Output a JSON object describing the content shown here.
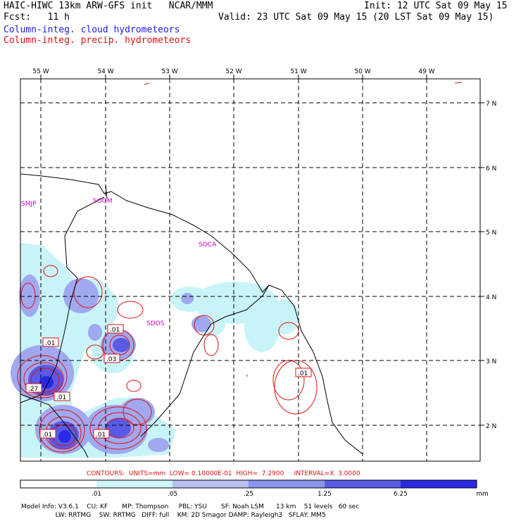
{
  "header": {
    "line1_left": "HAIC-HIWC 13km ARW-GFS init   NCAR/MMM",
    "line1_right": "Init: 12 UTC Sat 09 May 15",
    "line2_left": "Fcst:   11 h",
    "line2_right": "Valid: 23 UTC Sat 09 May 15 (20 LST Sat 09 May 15)",
    "line3": "Column-integ. cloud hydrometeors",
    "line4": "Column-integ. precip. hydrometeors"
  },
  "map": {
    "lon_labels": [
      "55 W",
      "54 W",
      "53 W",
      "52 W",
      "51 W",
      "50 W",
      "49 W"
    ],
    "lat_labels": [
      "7 N",
      "6 N",
      "5 N",
      "4 N",
      "3 N",
      "2 N"
    ],
    "stations": [
      "SMJP",
      "SOOM",
      "SOCA",
      "SDOS"
    ],
    "contour_labels": [
      ".01",
      ".01",
      ".03",
      ".27",
      ".01",
      ".01",
      ".01",
      ".01"
    ],
    "colors": {
      "cloud_shade_light": "#c8f4f8",
      "cloud_shade_mid": "#a0a8f0",
      "cloud_shade_dark": "#5050e0",
      "precip_contour": "#e01010",
      "station": "#cc00cc"
    }
  },
  "contour_info": {
    "label": "CONTOURS:  UNITS=mm  LOW= 0.10000E-01  HIGH=  7.2900     INTERVAL=X  3.0000"
  },
  "colorbar": {
    "ticks": [
      ".01",
      ".05",
      ".25",
      "1.25",
      "6.25"
    ],
    "unit": "mm",
    "colors": [
      "#ffffff",
      "#cff6fa",
      "#b8c0f4",
      "#8c94ee",
      "#5a5ae6",
      "#2a2ae6"
    ]
  },
  "footer": {
    "line1": "Model Info: V3.6.1    CU: KF       MP: Thompson     PBL: YSU       SF: Noah LSM      13 km    51 levels   60 sec",
    "line2": "                 LW: RRTMG    SW: RRTMG   DIFF: full    KM: 2D Smagor DAMP: Rayleigh3   SFLAY: MM5"
  }
}
